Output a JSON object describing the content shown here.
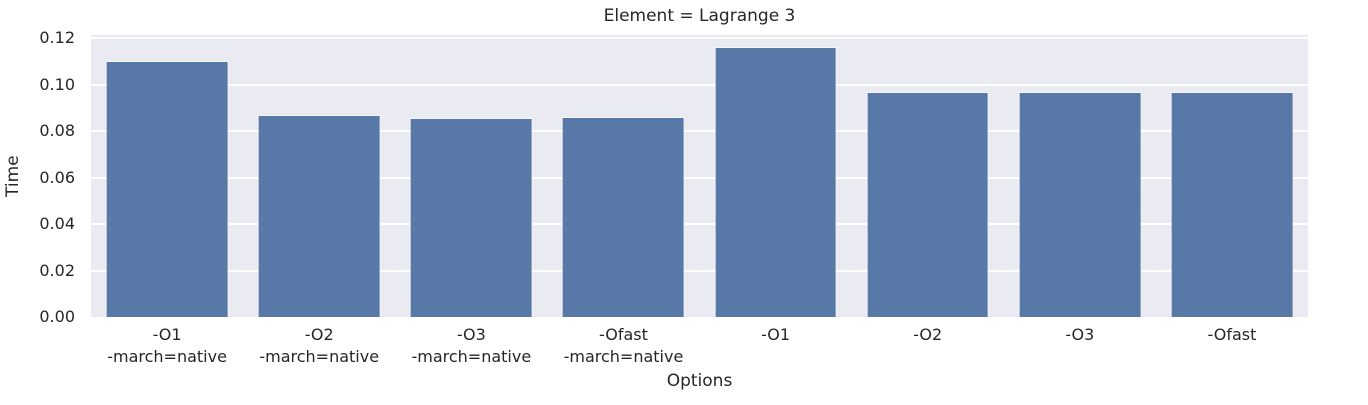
{
  "chart_data": {
    "type": "bar",
    "title": "Element = Lagrange 3",
    "xlabel": "Options",
    "ylabel": "Time",
    "categories": [
      "-O1\n-march=native",
      "-O2\n-march=native",
      "-O3\n-march=native",
      "-Ofast\n-march=native",
      "-O1",
      "-O2",
      "-O3",
      "-Ofast"
    ],
    "values": [
      0.1097,
      0.0867,
      0.0854,
      0.0857,
      0.1159,
      0.0965,
      0.0965,
      0.0965
    ],
    "yticks": [
      0.0,
      0.02,
      0.04,
      0.06,
      0.08,
      0.1,
      0.12
    ],
    "ylim": [
      0,
      0.1215
    ],
    "grid": "on",
    "legend": "none",
    "colors": {
      "bar": "#5878a8",
      "plot_background": "#eaeaf2",
      "gridline": "#ffffff",
      "figure_background": "#ffffff",
      "text": "#262626"
    }
  }
}
